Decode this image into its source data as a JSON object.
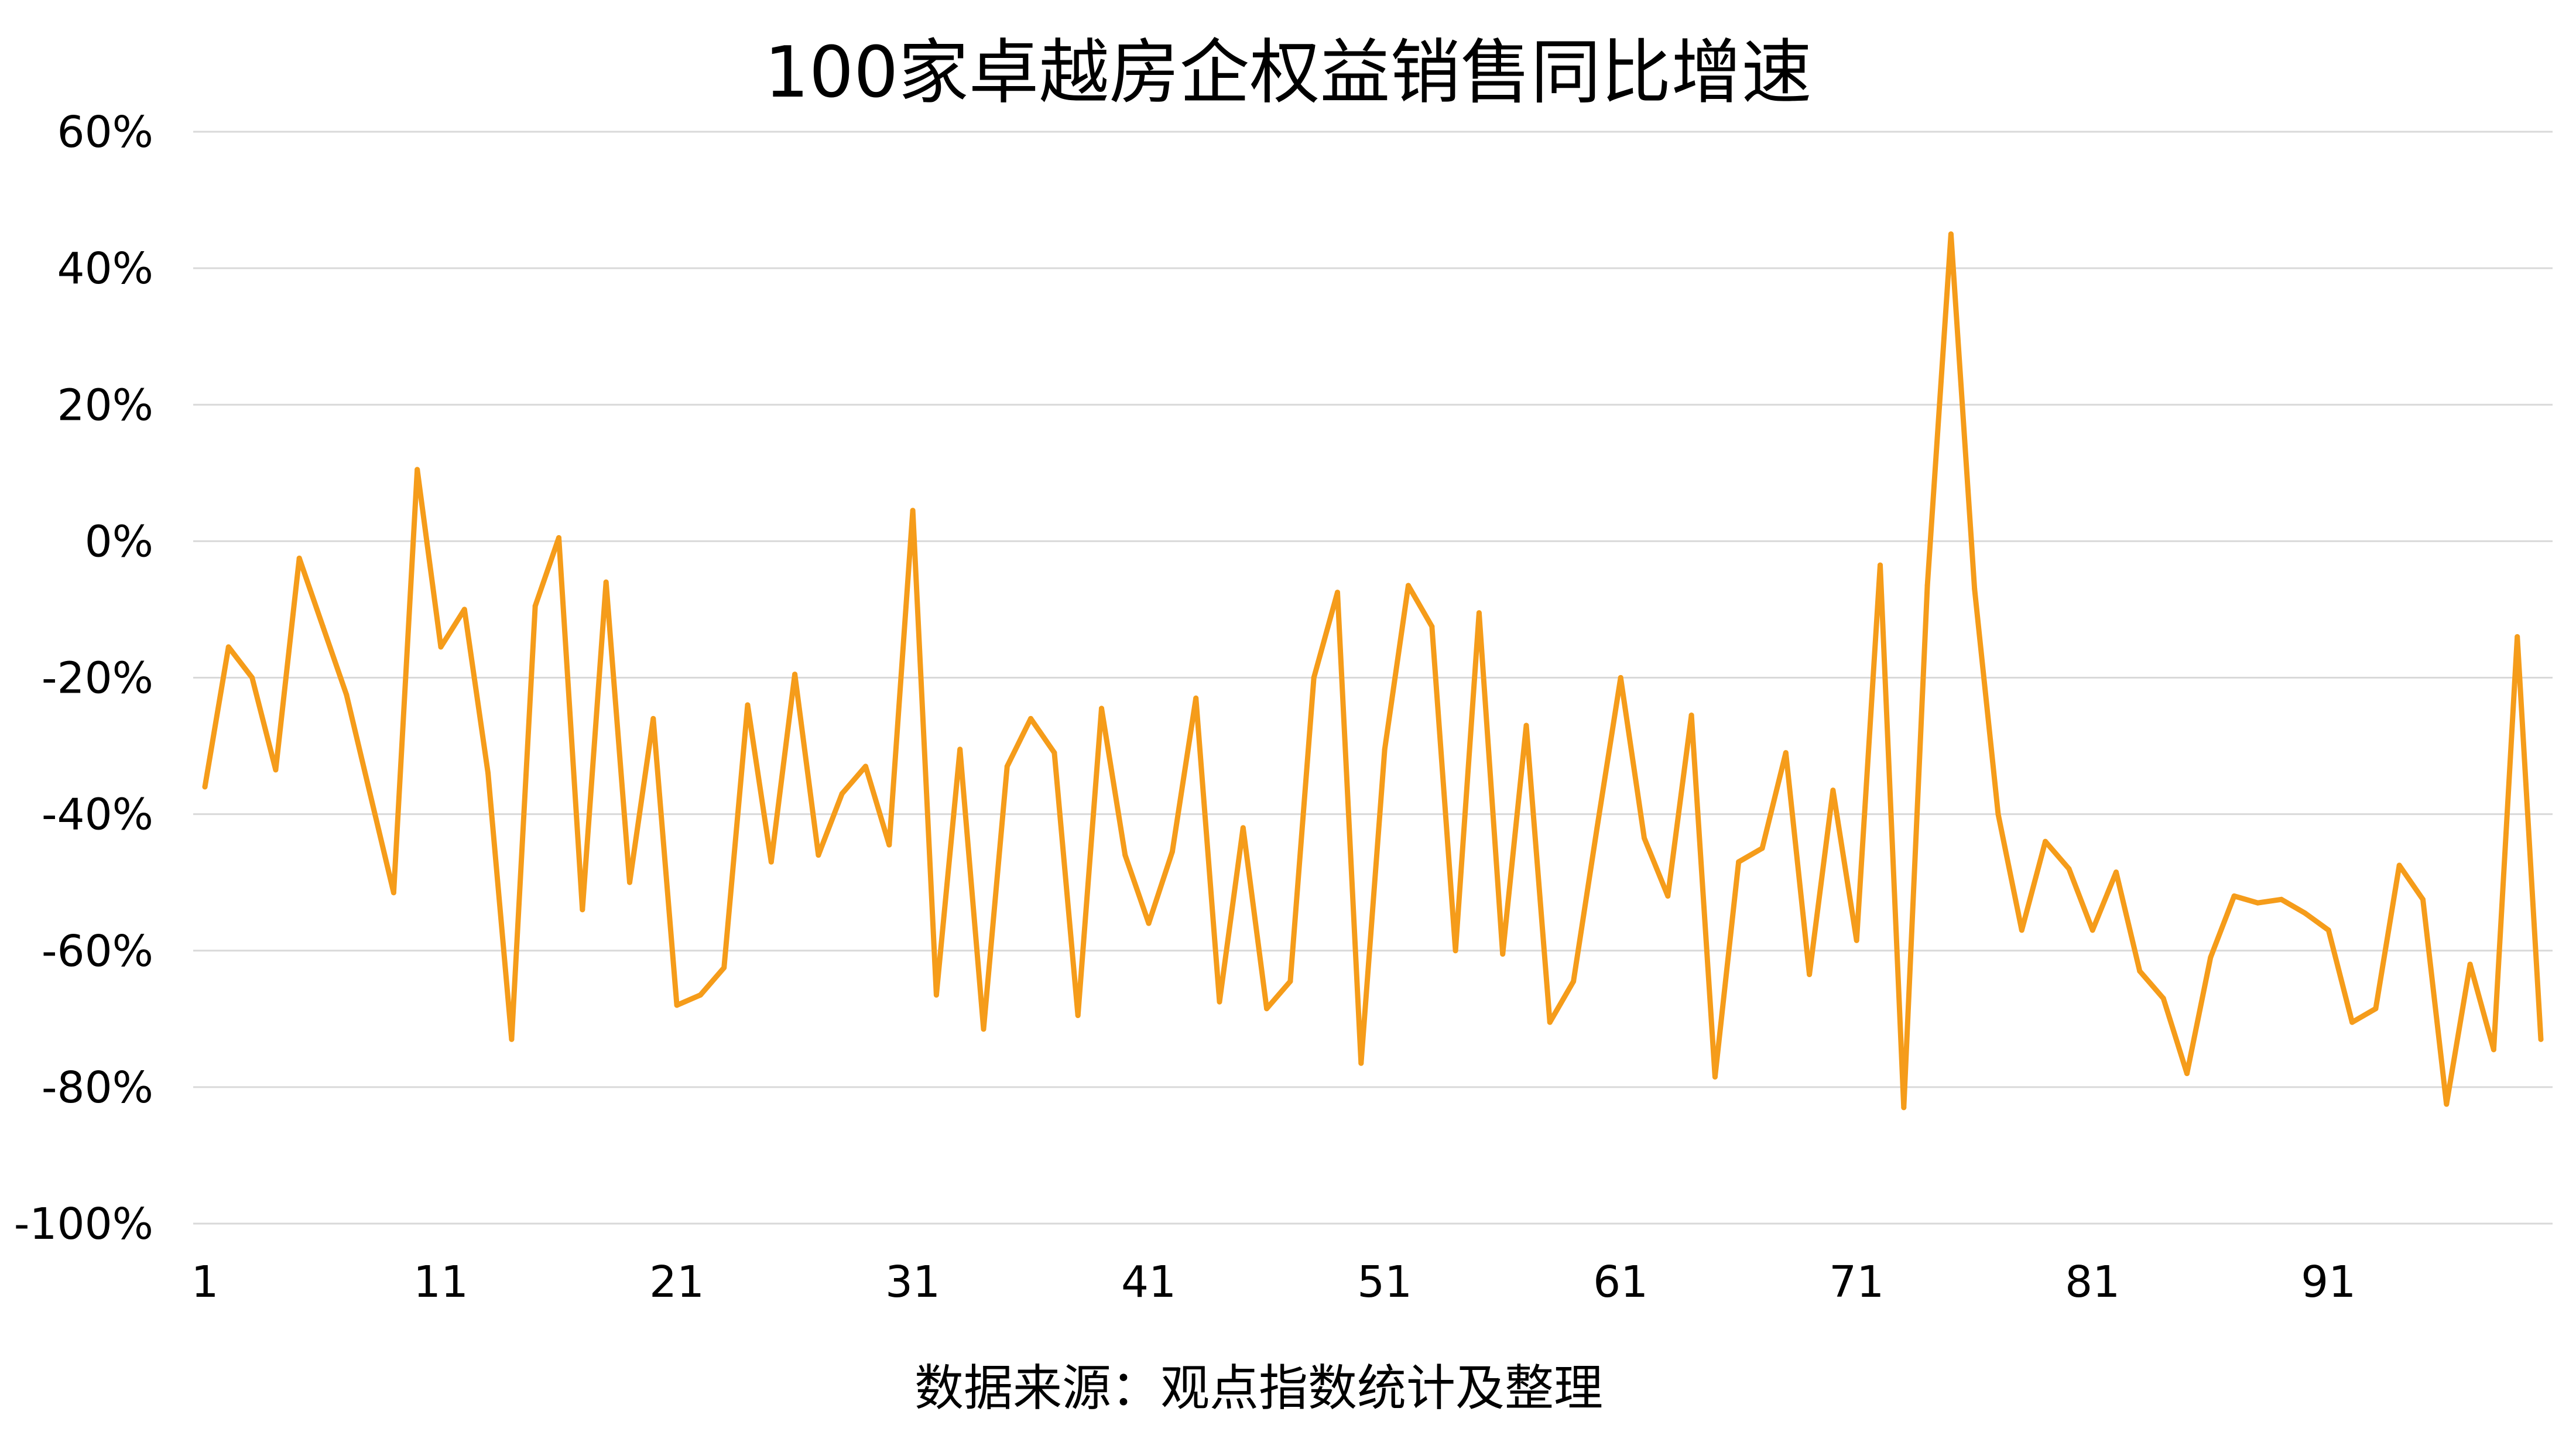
{
  "chart_data": {
    "type": "line",
    "title": "100家卓越房企权益销售同比增速",
    "annotation": "数据来源：观点指数统计及整理",
    "xlabel": "",
    "ylabel": "",
    "x_tick_labels": [
      "1",
      "11",
      "21",
      "31",
      "41",
      "51",
      "61",
      "71",
      "81",
      "91"
    ],
    "y_tick_labels": [
      "60%",
      "40%",
      "20%",
      "0%",
      "-20%",
      "-40%",
      "-60%",
      "-80%",
      "-100%"
    ],
    "ylim": [
      -100,
      60
    ],
    "y_ticks": [
      60,
      40,
      20,
      0,
      -20,
      -40,
      -60,
      -80,
      -100
    ],
    "grid": true,
    "legend": "none",
    "line_color": "#F59C1A",
    "x": [
      1,
      2,
      3,
      4,
      5,
      6,
      7,
      8,
      9,
      10,
      11,
      12,
      13,
      14,
      15,
      16,
      17,
      18,
      19,
      20,
      21,
      22,
      23,
      24,
      25,
      26,
      27,
      28,
      29,
      30,
      31,
      32,
      33,
      34,
      35,
      36,
      37,
      38,
      39,
      40,
      41,
      42,
      43,
      44,
      45,
      46,
      47,
      48,
      49,
      50,
      51,
      52,
      53,
      54,
      55,
      56,
      57,
      58,
      59,
      60,
      61,
      62,
      63,
      64,
      65,
      66,
      67,
      68,
      69,
      70,
      71,
      72,
      73,
      74,
      75,
      76,
      77,
      78,
      79,
      80,
      81,
      82,
      83,
      84,
      85,
      86,
      87,
      88,
      89,
      90,
      91,
      92,
      93,
      94,
      95,
      96,
      97,
      98,
      99,
      100
    ],
    "series": [
      {
        "values": [
          -36,
          -15.5,
          -20,
          -33.5,
          -2.5,
          -12.5,
          -22.5,
          -37,
          -51.5,
          10.5,
          -15.5,
          -10,
          -34,
          -73,
          -9.5,
          0.5,
          -54,
          -6,
          -50,
          -26,
          -68,
          -66.5,
          -62.5,
          -24,
          -47,
          -19.5,
          -46,
          -37,
          -33,
          -44.5,
          4.5,
          -66.5,
          -30.5,
          -71.5,
          -33,
          -26,
          -31,
          -69.5,
          -24.5,
          -46,
          -56,
          -45.5,
          -23,
          -67.5,
          -42,
          -68.5,
          -64.5,
          -20,
          -7.5,
          -76.5,
          -30.5,
          -6.5,
          -12.5,
          -60,
          -10.5,
          -60.5,
          -27,
          -70.5,
          -64.5,
          -42,
          -20,
          -43.5,
          -52,
          -25.5,
          -78.5,
          -47,
          -45,
          -31,
          -63.5,
          -36.5,
          -58.5,
          -3.5,
          -83,
          -6.5,
          45,
          -7,
          -40,
          -57,
          -44,
          -48,
          -57,
          -48.5,
          -63,
          -67,
          -78,
          -61,
          -52,
          -53,
          -52.5,
          -54.5,
          -57,
          -70.5,
          -68.5,
          -47.5,
          -52.5,
          -82.5,
          -62,
          -74.5,
          -14,
          -73
        ]
      }
    ]
  }
}
